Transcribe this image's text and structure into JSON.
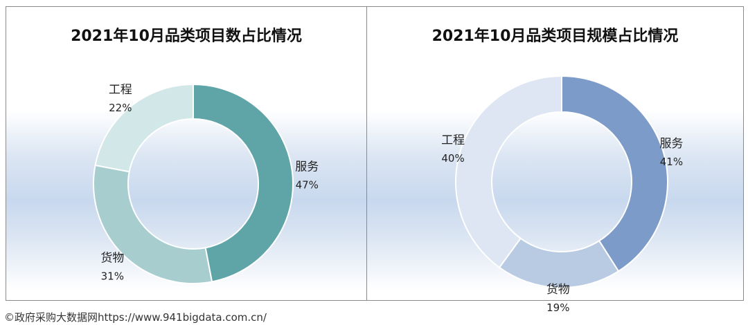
{
  "chart_data": [
    {
      "type": "pie",
      "title": "2021年10月品类项目数占比情况",
      "series": [
        {
          "label": "服务",
          "value": 47,
          "value_label": "47%",
          "color": "#5fa5a8"
        },
        {
          "label": "货物",
          "value": 31,
          "value_label": "31%",
          "color": "#a7cdcf"
        },
        {
          "label": "工程",
          "value": 22,
          "value_label": "22%",
          "color": "#d2e7e8"
        }
      ]
    },
    {
      "type": "pie",
      "title": "2021年10月品类项目规模占比情况",
      "series": [
        {
          "label": "服务",
          "value": 41,
          "value_label": "41%",
          "color": "#7d9bc9"
        },
        {
          "label": "货物",
          "value": 19,
          "value_label": "19%",
          "color": "#b9cae3"
        },
        {
          "label": "工程",
          "value": 40,
          "value_label": "40%",
          "color": "#dde6f2"
        }
      ]
    }
  ],
  "footer": {
    "credit": "©政府采购大数据网https://www.941bigdata.com.cn/"
  }
}
